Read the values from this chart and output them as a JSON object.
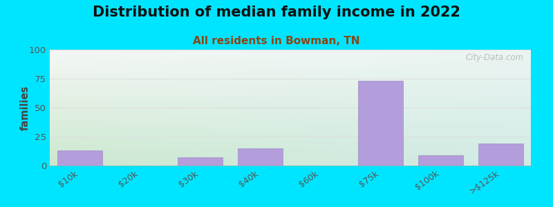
{
  "title": "Distribution of median family income in 2022",
  "subtitle": "All residents in Bowman, TN",
  "categories": [
    "$10k",
    "$20k",
    "$30k",
    "$40k",
    "$60k",
    "$75k",
    "$100k",
    ">$125k"
  ],
  "values": [
    13,
    0,
    7,
    15,
    0,
    73,
    9,
    19
  ],
  "bar_color": "#b39ddb",
  "bar_edge_color": "#9e8ec0",
  "title_fontsize": 15,
  "subtitle_fontsize": 11,
  "subtitle_color": "#8b4513",
  "ylabel": "families",
  "ylim": [
    0,
    100
  ],
  "yticks": [
    0,
    25,
    50,
    75,
    100
  ],
  "background_outer": "#00e5ff",
  "bg_top_left": "#f0f4ee",
  "bg_top_right": "#e8f0ee",
  "bg_bottom_left": "#c8e6c9",
  "bg_bottom_right": "#cde8e4",
  "watermark": "City-Data.com",
  "grid_color": "#dddddd",
  "tick_color": "#555555",
  "ylabel_color": "#444444"
}
